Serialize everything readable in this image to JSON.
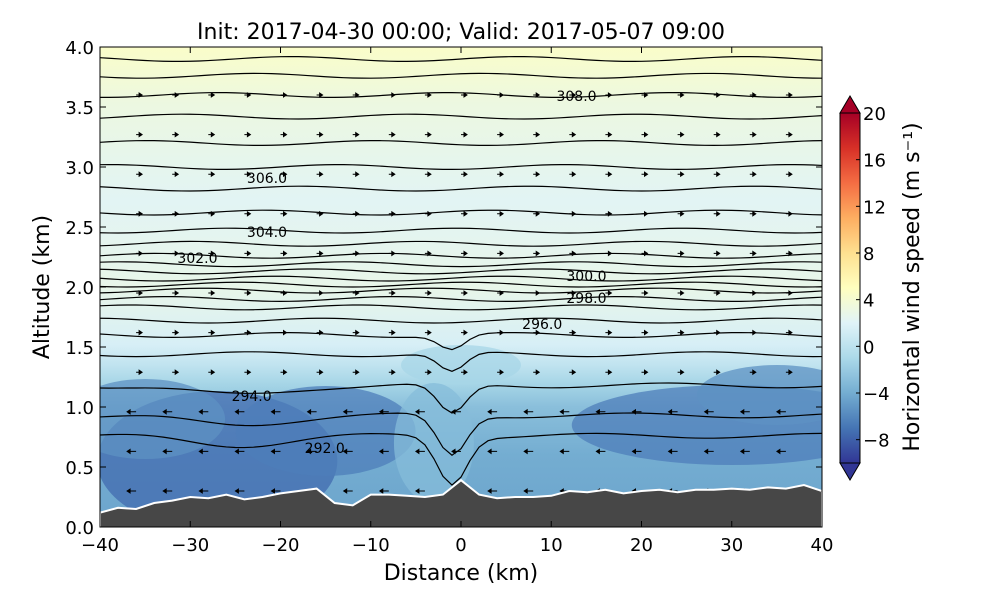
{
  "chart_data": {
    "type": "heatmap",
    "title": "Init: 2017-04-30 00:00; Valid: 2017-05-07 09:00",
    "xlabel": "Distance (km)",
    "ylabel": "Altitude (km)",
    "xlim": [
      -40,
      40
    ],
    "ylim": [
      0.0,
      4.0
    ],
    "x_ticks": [
      "−40",
      "−30",
      "−20",
      "−10",
      "0",
      "10",
      "20",
      "30",
      "40"
    ],
    "y_ticks": [
      "0.0",
      "0.5",
      "1.0",
      "1.5",
      "2.0",
      "2.5",
      "3.0",
      "3.5",
      "4.0"
    ],
    "colorbar": {
      "label": "Horizontal wind speed (m s⁻¹)",
      "range": [
        -10,
        20
      ],
      "ticks": [
        "−8",
        "−4",
        "0",
        "4",
        "8",
        "12",
        "16",
        "20"
      ],
      "colormap": "RdYlBu_r"
    },
    "contour_labels": [
      {
        "text": "308.0",
        "x": 12.8,
        "y": 3.59
      },
      {
        "text": "306.0",
        "x": -21.5,
        "y": 2.91
      },
      {
        "text": "304.0",
        "x": -21.5,
        "y": 2.46
      },
      {
        "text": "302.0",
        "x": -29.2,
        "y": 2.24
      },
      {
        "text": "300.0",
        "x": 13.9,
        "y": 2.09
      },
      {
        "text": "298.0",
        "x": 13.9,
        "y": 1.91
      },
      {
        "text": "296.0",
        "x": 9.0,
        "y": 1.69
      },
      {
        "text": "294.0",
        "x": -23.2,
        "y": 1.09
      },
      {
        "text": "292.0",
        "x": -15.1,
        "y": 0.66
      }
    ],
    "terrain": {
      "x": [
        -40,
        -38,
        -36,
        -34,
        -32,
        -30,
        -28,
        -26,
        -24,
        -22,
        -20,
        -18,
        -16,
        -14,
        -12,
        -10,
        -8,
        -6,
        -4,
        -2,
        0,
        2,
        4,
        6,
        8,
        10,
        12,
        14,
        16,
        18,
        20,
        22,
        24,
        26,
        28,
        30,
        32,
        34,
        36,
        38,
        40
      ],
      "y": [
        0.12,
        0.16,
        0.15,
        0.2,
        0.22,
        0.25,
        0.24,
        0.27,
        0.23,
        0.25,
        0.28,
        0.3,
        0.32,
        0.2,
        0.18,
        0.27,
        0.27,
        0.26,
        0.25,
        0.27,
        0.39,
        0.27,
        0.24,
        0.25,
        0.25,
        0.26,
        0.3,
        0.29,
        0.31,
        0.28,
        0.3,
        0.31,
        0.29,
        0.31,
        0.31,
        0.32,
        0.31,
        0.33,
        0.32,
        0.35,
        0.3
      ]
    }
  }
}
